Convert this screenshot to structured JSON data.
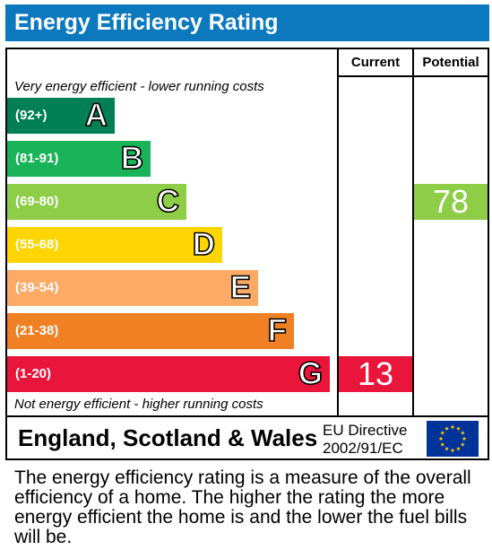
{
  "header": {
    "title": "Energy Efficiency Rating"
  },
  "columns": {
    "current": "Current",
    "potential": "Potential"
  },
  "notes": {
    "top": "Very energy efficient - lower running costs",
    "bottom": "Not energy efficient - higher running costs"
  },
  "colors": {
    "header": "#0c79bf",
    "A": "#008054",
    "B": "#19b459",
    "C": "#8dce46",
    "D": "#ffd500",
    "E": "#fcaa65",
    "F": "#ef8023",
    "G": "#e9153b",
    "eu_blue": "#003399",
    "eu_star": "#ffcc00"
  },
  "chart_data": {
    "type": "bar",
    "title": "Energy Efficiency Rating",
    "bands": [
      {
        "letter": "A",
        "range": "(92+)"
      },
      {
        "letter": "B",
        "range": "(81-91)"
      },
      {
        "letter": "C",
        "range": "(69-80)"
      },
      {
        "letter": "D",
        "range": "(55-68)"
      },
      {
        "letter": "E",
        "range": "(39-54)"
      },
      {
        "letter": "F",
        "range": "(21-38)"
      },
      {
        "letter": "G",
        "range": "(1-20)"
      }
    ],
    "current": {
      "value": "13",
      "band": "G"
    },
    "potential": {
      "value": "78",
      "band": "C"
    }
  },
  "footer": {
    "region": "England, Scotland & Wales",
    "directive_line1": "EU Directive",
    "directive_line2": "2002/91/EC",
    "flag_icon": "eu-flag-icon"
  },
  "caption": "The energy efficiency rating is a measure of the overall efficiency of a home. The higher the rating the more energy efficient the home is and the lower the fuel bills will be."
}
